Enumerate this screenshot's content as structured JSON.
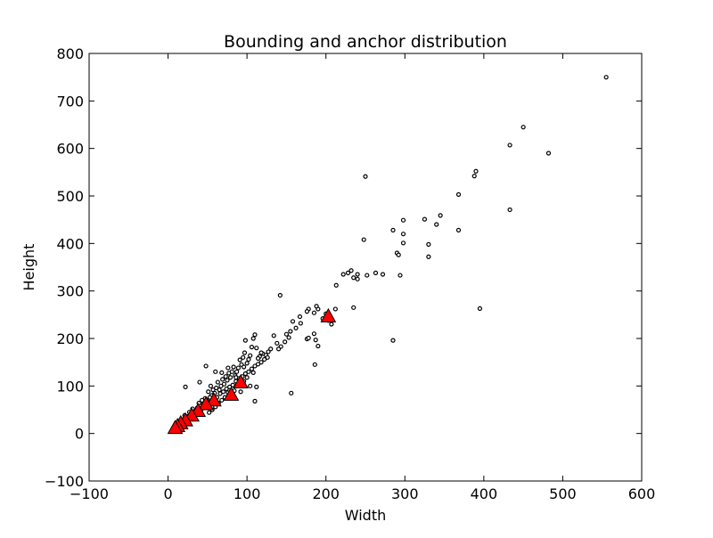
{
  "chart_data": {
    "type": "scatter",
    "title": "Bounding and anchor distribution",
    "xlabel": "Width",
    "ylabel": "Height",
    "xlim": [
      -100,
      600
    ],
    "ylim": [
      -100,
      800
    ],
    "xticks": [
      "−100",
      "0",
      "100",
      "200",
      "300",
      "400",
      "500",
      "600"
    ],
    "yticks": [
      "−100",
      "0",
      "100",
      "200",
      "300",
      "400",
      "500",
      "600",
      "700",
      "800"
    ],
    "grid": false,
    "legend": "none",
    "series": [
      {
        "kind": "points",
        "marker": "circle-open",
        "color": "#000000",
        "points": [
          [
            555,
            750
          ],
          [
            450,
            645
          ],
          [
            433,
            607
          ],
          [
            482,
            590
          ],
          [
            390,
            552
          ],
          [
            388,
            542
          ],
          [
            368,
            503
          ],
          [
            250,
            541
          ],
          [
            433,
            471
          ],
          [
            298,
            449
          ],
          [
            325,
            451
          ],
          [
            345,
            459
          ],
          [
            340,
            440
          ],
          [
            368,
            428
          ],
          [
            285,
            428
          ],
          [
            298,
            420
          ],
          [
            248,
            408
          ],
          [
            298,
            401
          ],
          [
            330,
            398
          ],
          [
            290,
            380
          ],
          [
            292,
            376
          ],
          [
            330,
            372
          ],
          [
            294,
            333
          ],
          [
            395,
            263
          ],
          [
            142,
            291
          ],
          [
            285,
            196
          ],
          [
            228,
            338
          ],
          [
            232,
            343
          ],
          [
            222,
            335
          ],
          [
            235,
            328
          ],
          [
            240,
            335
          ],
          [
            240,
            325
          ],
          [
            252,
            333
          ],
          [
            263,
            338
          ],
          [
            272,
            335
          ],
          [
            213,
            312
          ],
          [
            212,
            262
          ],
          [
            235,
            265
          ],
          [
            200,
            252
          ],
          [
            203,
            238
          ],
          [
            207,
            230
          ],
          [
            196,
            242
          ],
          [
            190,
            262
          ],
          [
            188,
            268
          ],
          [
            185,
            254
          ],
          [
            178,
            262
          ],
          [
            176,
            257
          ],
          [
            168,
            232
          ],
          [
            167,
            246
          ],
          [
            162,
            222
          ],
          [
            158,
            236
          ],
          [
            155,
            215
          ],
          [
            153,
            202
          ],
          [
            150,
            209
          ],
          [
            148,
            193
          ],
          [
            176,
            199
          ],
          [
            178,
            201
          ],
          [
            185,
            210
          ],
          [
            187,
            197
          ],
          [
            190,
            184
          ],
          [
            186,
            145
          ],
          [
            156,
            85
          ],
          [
            143,
            183
          ],
          [
            140,
            178
          ],
          [
            138,
            190
          ],
          [
            134,
            206
          ],
          [
            130,
            178
          ],
          [
            127,
            172
          ],
          [
            124,
            165
          ],
          [
            120,
            168
          ],
          [
            118,
            170
          ],
          [
            116,
            162
          ],
          [
            114,
            158
          ],
          [
            112,
            180
          ],
          [
            110,
            208
          ],
          [
            108,
            200
          ],
          [
            106,
            182
          ],
          [
            104,
            164
          ],
          [
            102,
            156
          ],
          [
            100,
            148
          ],
          [
            98,
            196
          ],
          [
            97,
            170
          ],
          [
            95,
            160
          ],
          [
            93,
            145
          ],
          [
            91,
            155
          ],
          [
            89,
            138
          ],
          [
            87,
            130
          ],
          [
            85,
            122
          ],
          [
            83,
            140
          ],
          [
            81,
            130
          ],
          [
            79,
            118
          ],
          [
            77,
            127
          ],
          [
            75,
            112
          ],
          [
            73,
            120
          ],
          [
            71,
            104
          ],
          [
            69,
            114
          ],
          [
            67,
            100
          ],
          [
            65,
            92
          ],
          [
            63,
            108
          ],
          [
            61,
            96
          ],
          [
            59,
            85
          ],
          [
            57,
            92
          ],
          [
            55,
            80
          ],
          [
            53,
            76
          ],
          [
            51,
            88
          ],
          [
            49,
            70
          ],
          [
            47,
            74
          ],
          [
            45,
            64
          ],
          [
            43,
            70
          ],
          [
            41,
            58
          ],
          [
            39,
            64
          ],
          [
            37,
            54
          ],
          [
            35,
            48
          ],
          [
            33,
            44
          ],
          [
            31,
            52
          ],
          [
            29,
            40
          ],
          [
            27,
            45
          ],
          [
            25,
            36
          ],
          [
            23,
            32
          ],
          [
            21,
            38
          ],
          [
            19,
            28
          ],
          [
            17,
            25
          ],
          [
            15,
            22
          ],
          [
            13,
            20
          ],
          [
            11,
            15
          ],
          [
            9,
            12
          ],
          [
            10,
            18
          ],
          [
            14,
            14
          ],
          [
            18,
            22
          ],
          [
            22,
            26
          ],
          [
            26,
            30
          ],
          [
            30,
            34
          ],
          [
            34,
            40
          ],
          [
            38,
            46
          ],
          [
            42,
            50
          ],
          [
            46,
            56
          ],
          [
            50,
            60
          ],
          [
            54,
            66
          ],
          [
            58,
            72
          ],
          [
            62,
            76
          ],
          [
            66,
            84
          ],
          [
            70,
            88
          ],
          [
            74,
            94
          ],
          [
            78,
            98
          ],
          [
            82,
            102
          ],
          [
            86,
            110
          ],
          [
            90,
            116
          ],
          [
            94,
            120
          ],
          [
            98,
            126
          ],
          [
            102,
            130
          ],
          [
            106,
            136
          ],
          [
            110,
            142
          ],
          [
            114,
            146
          ],
          [
            118,
            150
          ],
          [
            122,
            156
          ],
          [
            126,
            160
          ],
          [
            88,
            102
          ],
          [
            92,
            88
          ],
          [
            96,
            110
          ],
          [
            100,
            118
          ],
          [
            104,
            100
          ],
          [
            108,
            128
          ],
          [
            112,
            98
          ],
          [
            110,
            68
          ],
          [
            84,
            90
          ],
          [
            80,
            80
          ],
          [
            76,
            86
          ],
          [
            72,
            76
          ],
          [
            68,
            70
          ],
          [
            64,
            64
          ],
          [
            60,
            56
          ],
          [
            56,
            50
          ],
          [
            52,
            44
          ],
          [
            48,
            142
          ],
          [
            40,
            108
          ],
          [
            22,
            98
          ],
          [
            60,
            130
          ],
          [
            68,
            128
          ],
          [
            76,
            138
          ],
          [
            86,
            118
          ],
          [
            96,
            140
          ],
          [
            54,
            100
          ]
        ]
      },
      {
        "kind": "anchors",
        "marker": "triangle",
        "color": "#ff0000",
        "points": [
          [
            203,
            247
          ],
          [
            92,
            108
          ],
          [
            80,
            82
          ],
          [
            58,
            70
          ],
          [
            48,
            62
          ],
          [
            38,
            48
          ],
          [
            30,
            38
          ],
          [
            22,
            28
          ],
          [
            16,
            22
          ],
          [
            12,
            16
          ],
          [
            9,
            12
          ]
        ]
      }
    ]
  }
}
